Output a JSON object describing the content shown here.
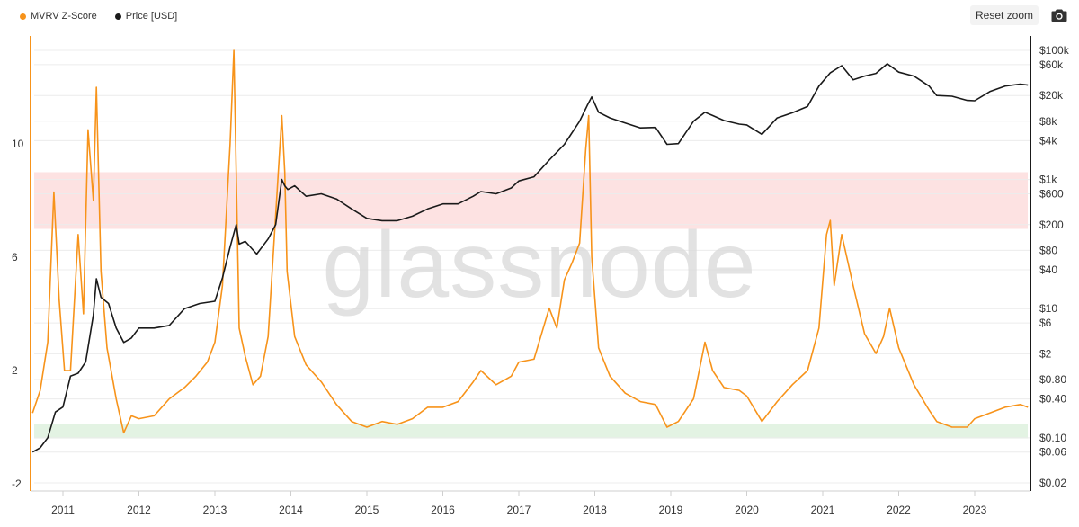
{
  "legend": {
    "z_label": "MVRV Z-Score",
    "price_label": "Price [USD]"
  },
  "toolbar": {
    "reset_zoom": "Reset zoom",
    "camera_icon": "camera-icon"
  },
  "watermark": "glassnode",
  "colors": {
    "z_line": "#f7931a",
    "price_line": "#1a1a1a",
    "overvalued_band": "#fde2e2",
    "undervalued_band": "#e3f3e3",
    "grid": "#ececec"
  },
  "chart_data": {
    "type": "line",
    "grid": true,
    "legend_placement": "top-left",
    "left_axis": {
      "ticks": [
        -2,
        2,
        6,
        10
      ],
      "tick_labels": [
        "-2",
        "2",
        "6",
        "10"
      ],
      "range": [
        -2,
        14
      ]
    },
    "right_axis": {
      "scale": "log",
      "range": [
        0.02,
        160000
      ],
      "ticks": [
        0.02,
        0.06,
        0.1,
        0.4,
        0.8,
        2,
        6,
        10,
        40,
        80,
        200,
        600,
        1000,
        4000,
        8000,
        20000,
        60000,
        100000
      ],
      "tick_labels": [
        "$0.02",
        "$0.06",
        "$0.10",
        "$0.40",
        "$0.80",
        "$2",
        "$6",
        "$10",
        "$40",
        "$80",
        "$200",
        "$600",
        "$1k",
        "$4k",
        "$8k",
        "$20k",
        "$60k",
        "$100k"
      ]
    },
    "x_axis": {
      "range": [
        2010.6,
        2023.7
      ],
      "ticks": [
        2011,
        2012,
        2013,
        2014,
        2015,
        2016,
        2017,
        2018,
        2019,
        2020,
        2021,
        2022,
        2023
      ],
      "tick_labels": [
        "2011",
        "2012",
        "2013",
        "2014",
        "2015",
        "2016",
        "2017",
        "2018",
        "2019",
        "2020",
        "2021",
        "2022",
        "2023"
      ]
    },
    "bands": [
      {
        "name": "overvalued",
        "from": 7,
        "to": 9
      },
      {
        "name": "undervalued",
        "from": -0.4,
        "to": 0.1
      }
    ],
    "series": [
      {
        "name": "MVRV Z-Score",
        "axis": "left",
        "x": [
          2010.6,
          2010.7,
          2010.8,
          2010.88,
          2010.95,
          2011.02,
          2011.1,
          2011.2,
          2011.27,
          2011.33,
          2011.4,
          2011.44,
          2011.5,
          2011.58,
          2011.7,
          2011.8,
          2011.9,
          2012.0,
          2012.2,
          2012.4,
          2012.6,
          2012.75,
          2012.9,
          2013.0,
          2013.1,
          2013.2,
          2013.25,
          2013.28,
          2013.32,
          2013.4,
          2013.5,
          2013.6,
          2013.7,
          2013.8,
          2013.88,
          2013.92,
          2013.95,
          2014.05,
          2014.2,
          2014.4,
          2014.6,
          2014.8,
          2015.0,
          2015.2,
          2015.4,
          2015.6,
          2015.8,
          2016.0,
          2016.2,
          2016.4,
          2016.5,
          2016.7,
          2016.9,
          2017.0,
          2017.2,
          2017.4,
          2017.5,
          2017.6,
          2017.7,
          2017.8,
          2017.88,
          2017.92,
          2017.96,
          2018.05,
          2018.2,
          2018.4,
          2018.6,
          2018.8,
          2018.95,
          2019.1,
          2019.3,
          2019.45,
          2019.55,
          2019.7,
          2019.9,
          2020.0,
          2020.2,
          2020.4,
          2020.6,
          2020.8,
          2020.95,
          2021.05,
          2021.1,
          2021.15,
          2021.25,
          2021.4,
          2021.55,
          2021.7,
          2021.8,
          2021.88,
          2022.0,
          2022.2,
          2022.4,
          2022.5,
          2022.7,
          2022.9,
          2023.0,
          2023.2,
          2023.4,
          2023.6,
          2023.7
        ],
        "values": [
          0.5,
          1.3,
          3.0,
          8.3,
          4.5,
          2.0,
          2.0,
          6.8,
          4.0,
          10.5,
          8.0,
          12.0,
          5.5,
          2.8,
          1.0,
          -0.2,
          0.4,
          0.3,
          0.4,
          1.0,
          1.4,
          1.8,
          2.3,
          3.0,
          5.0,
          10.0,
          13.3,
          9.0,
          3.5,
          2.5,
          1.5,
          1.8,
          3.2,
          7.5,
          11.0,
          9.0,
          5.5,
          3.2,
          2.2,
          1.6,
          0.8,
          0.2,
          0.0,
          0.2,
          0.1,
          0.3,
          0.7,
          0.7,
          0.9,
          1.6,
          2.0,
          1.5,
          1.8,
          2.3,
          2.4,
          4.2,
          3.5,
          5.2,
          5.8,
          6.5,
          9.8,
          11.0,
          6.0,
          2.8,
          1.8,
          1.2,
          0.9,
          0.8,
          0.0,
          0.2,
          1.0,
          3.0,
          2.0,
          1.4,
          1.3,
          1.1,
          0.2,
          0.9,
          1.5,
          2.0,
          3.5,
          6.8,
          7.3,
          5.0,
          6.8,
          5.0,
          3.3,
          2.6,
          3.2,
          4.2,
          2.8,
          1.5,
          0.6,
          0.2,
          0.0,
          0.0,
          0.3,
          0.5,
          0.7,
          0.8,
          0.7
        ]
      },
      {
        "name": "Price [USD]",
        "axis": "right",
        "x": [
          2010.6,
          2010.7,
          2010.8,
          2010.9,
          2011.0,
          2011.1,
          2011.2,
          2011.3,
          2011.4,
          2011.44,
          2011.5,
          2011.6,
          2011.7,
          2011.8,
          2011.9,
          2012.0,
          2012.2,
          2012.4,
          2012.6,
          2012.8,
          2013.0,
          2013.1,
          2013.2,
          2013.28,
          2013.32,
          2013.4,
          2013.55,
          2013.7,
          2013.8,
          2013.88,
          2013.92,
          2013.96,
          2014.05,
          2014.2,
          2014.4,
          2014.6,
          2014.8,
          2015.0,
          2015.2,
          2015.4,
          2015.6,
          2015.8,
          2016.0,
          2016.2,
          2016.4,
          2016.5,
          2016.7,
          2016.9,
          2017.0,
          2017.2,
          2017.4,
          2017.6,
          2017.8,
          2017.9,
          2017.96,
          2018.05,
          2018.2,
          2018.4,
          2018.6,
          2018.8,
          2018.95,
          2019.1,
          2019.3,
          2019.45,
          2019.55,
          2019.7,
          2019.9,
          2020.0,
          2020.2,
          2020.4,
          2020.6,
          2020.8,
          2020.95,
          2021.1,
          2021.25,
          2021.4,
          2021.55,
          2021.7,
          2021.85,
          2022.0,
          2022.2,
          2022.4,
          2022.5,
          2022.7,
          2022.9,
          2023.0,
          2023.2,
          2023.4,
          2023.6,
          2023.7
        ],
        "values": [
          0.06,
          0.07,
          0.1,
          0.25,
          0.3,
          0.9,
          1.0,
          1.5,
          8.0,
          29.0,
          15.0,
          12.0,
          5.0,
          3.0,
          3.5,
          5.0,
          5.0,
          5.5,
          10.0,
          12.0,
          13.0,
          30.0,
          90.0,
          200.0,
          100.0,
          110.0,
          70.0,
          120.0,
          200.0,
          1000.0,
          800.0,
          700.0,
          800.0,
          550.0,
          600.0,
          500.0,
          350.0,
          250.0,
          230.0,
          230.0,
          270.0,
          350.0,
          420.0,
          420.0,
          550.0,
          650.0,
          600.0,
          740.0,
          950.0,
          1100.0,
          2000.0,
          3500.0,
          8000.0,
          14000.0,
          19000.0,
          11000.0,
          9000.0,
          7500.0,
          6300.0,
          6400.0,
          3500.0,
          3600.0,
          8000.0,
          11000.0,
          9800.0,
          8200.0,
          7200.0,
          7000.0,
          5000.0,
          9000.0,
          10800.0,
          13500.0,
          28000.0,
          45000.0,
          58000.0,
          35000.0,
          40000.0,
          44000.0,
          62000.0,
          46000.0,
          40000.0,
          28000.0,
          20000.0,
          19500.0,
          16800.0,
          16600.0,
          23000.0,
          28000.0,
          30000.0,
          29000.0
        ]
      }
    ]
  }
}
